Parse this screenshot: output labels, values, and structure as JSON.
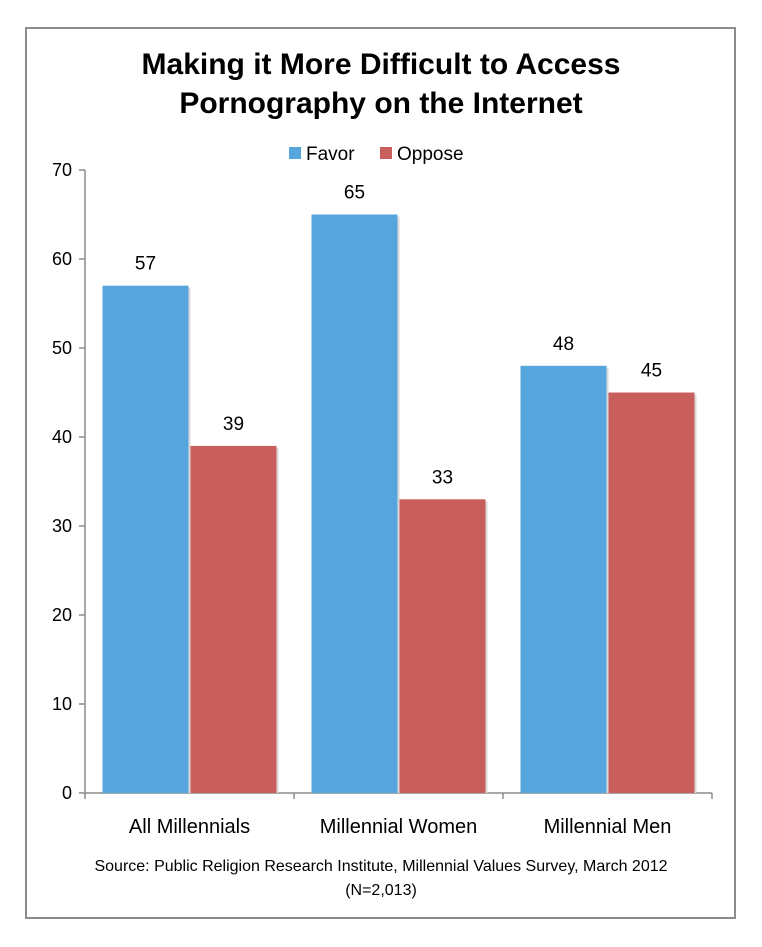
{
  "chart_data": {
    "type": "bar",
    "title": "Making it More Difficult to Access\nPornography on the Internet",
    "categories": [
      "All Millennials",
      "Millennial Women",
      "Millennial Men"
    ],
    "series": [
      {
        "name": "Favor",
        "values": [
          57,
          65,
          48
        ],
        "color": "#56a5dd"
      },
      {
        "name": "Oppose",
        "values": [
          39,
          33,
          45
        ],
        "color": "#c95f5d"
      }
    ],
    "ylim": [
      0,
      70
    ],
    "yticks": [
      0,
      10,
      20,
      30,
      40,
      50,
      60,
      70
    ],
    "legend_position": "top-center",
    "grid": false,
    "source": "Source: Public Religion Research Institute, Millennial Values Survey, March 2012\n(N=2,013)"
  }
}
